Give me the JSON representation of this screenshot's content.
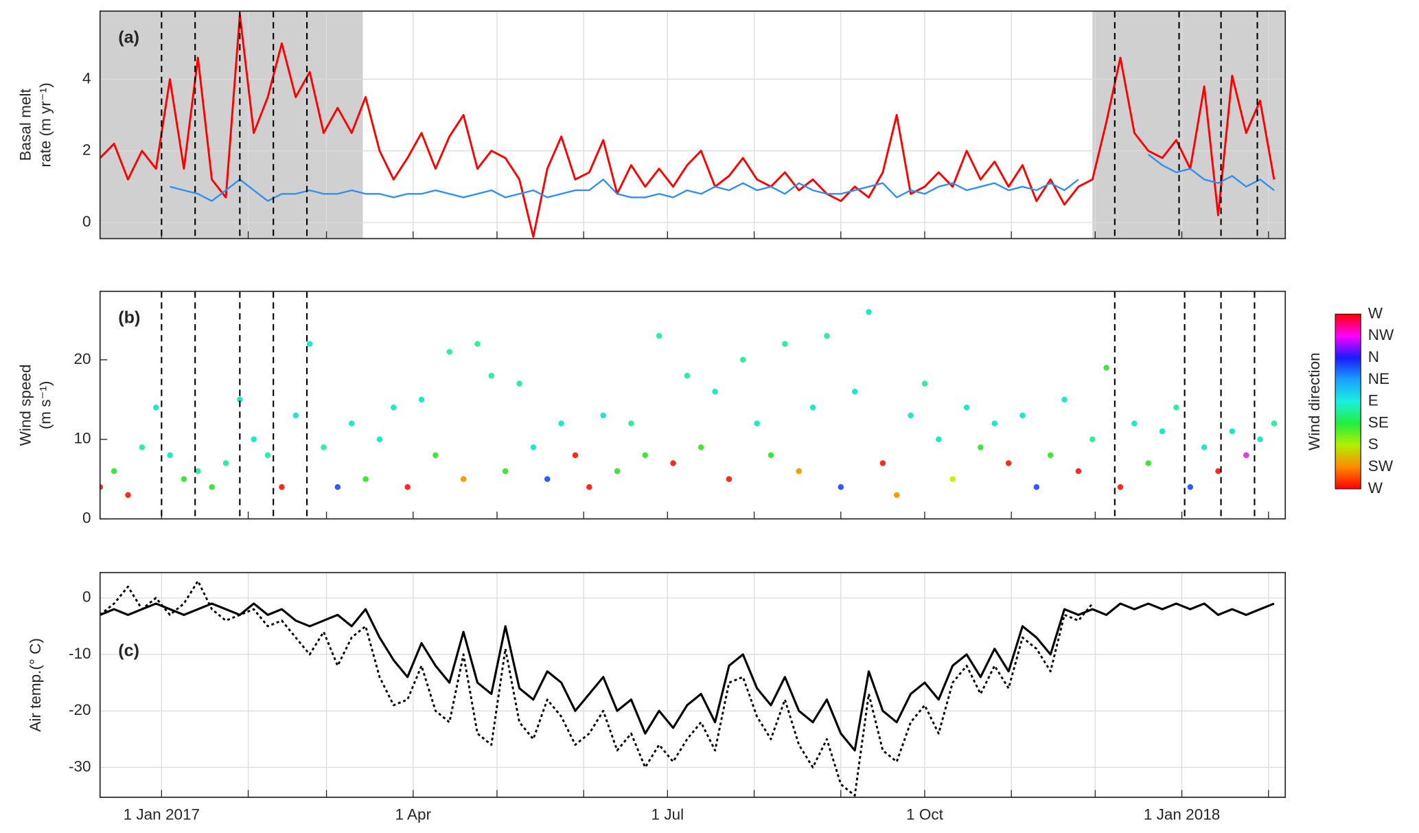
{
  "chart_data": [
    {
      "type": "line",
      "panel_label": "(a)",
      "ylabel": [
        "Basal melt",
        "rate (m yr⁻¹)"
      ],
      "xlim": [
        "2016-12-10",
        "2018-02-07"
      ],
      "ylim": [
        -0.45,
        5.9
      ],
      "yticks": [
        0,
        2,
        4
      ],
      "grid": true,
      "xticks": [
        "2017-01-01",
        "2017-02-01",
        "2017-03-01",
        "2017-04-01",
        "2017-05-01",
        "2017-06-01",
        "2017-07-01",
        "2017-08-01",
        "2017-09-01",
        "2017-10-01",
        "2017-11-01",
        "2017-12-01",
        "2018-01-01",
        "2018-02-01"
      ],
      "shaded": [
        [
          "2016-12-10",
          "2017-03-14"
        ],
        [
          "2017-11-30",
          "2018-02-07"
        ]
      ],
      "shade_color": "#d0d0d0",
      "events": [
        "2017-01-01",
        "2017-01-13",
        "2017-01-29",
        "2017-02-10",
        "2017-02-22",
        "2017-12-08",
        "2017-12-31",
        "2018-01-15",
        "2018-01-28"
      ],
      "x": [
        "2016-12-10",
        "2016-12-15",
        "2016-12-20",
        "2016-12-25",
        "2016-12-30",
        "2017-01-04",
        "2017-01-09",
        "2017-01-14",
        "2017-01-19",
        "2017-01-24",
        "2017-01-29",
        "2017-02-03",
        "2017-02-08",
        "2017-02-13",
        "2017-02-18",
        "2017-02-23",
        "2017-02-28",
        "2017-03-05",
        "2017-03-10",
        "2017-03-15",
        "2017-03-20",
        "2017-03-25",
        "2017-03-30",
        "2017-04-04",
        "2017-04-09",
        "2017-04-14",
        "2017-04-19",
        "2017-04-24",
        "2017-04-29",
        "2017-05-04",
        "2017-05-09",
        "2017-05-14",
        "2017-05-19",
        "2017-05-24",
        "2017-05-29",
        "2017-06-03",
        "2017-06-08",
        "2017-06-13",
        "2017-06-18",
        "2017-06-23",
        "2017-06-28",
        "2017-07-03",
        "2017-07-08",
        "2017-07-13",
        "2017-07-18",
        "2017-07-23",
        "2017-07-28",
        "2017-08-02",
        "2017-08-07",
        "2017-08-12",
        "2017-08-17",
        "2017-08-22",
        "2017-08-27",
        "2017-09-01",
        "2017-09-06",
        "2017-09-11",
        "2017-09-16",
        "2017-09-21",
        "2017-09-26",
        "2017-10-01",
        "2017-10-06",
        "2017-10-11",
        "2017-10-16",
        "2017-10-21",
        "2017-10-26",
        "2017-10-31",
        "2017-11-05",
        "2017-11-10",
        "2017-11-15",
        "2017-11-20",
        "2017-11-25",
        "2017-11-30",
        "2017-12-05",
        "2017-12-10",
        "2017-12-15",
        "2017-12-20",
        "2017-12-25",
        "2017-12-30",
        "2018-01-04",
        "2018-01-09",
        "2018-01-14",
        "2018-01-19",
        "2018-01-24",
        "2018-01-29",
        "2018-02-03"
      ],
      "series": [
        {
          "color": "#ff0000",
          "width": 2.2,
          "values": [
            1.8,
            2.2,
            1.2,
            2.0,
            1.5,
            4.0,
            1.5,
            4.6,
            1.2,
            0.7,
            5.8,
            2.5,
            3.5,
            5.0,
            3.5,
            4.2,
            2.5,
            3.2,
            2.5,
            3.5,
            2.0,
            1.2,
            1.8,
            2.5,
            1.5,
            2.4,
            3.0,
            1.5,
            2.0,
            1.8,
            1.2,
            -0.4,
            1.5,
            2.4,
            1.2,
            1.4,
            2.3,
            0.8,
            1.6,
            1.0,
            1.5,
            1.0,
            1.6,
            2.0,
            1.0,
            1.3,
            1.8,
            1.2,
            1.0,
            1.4,
            0.9,
            1.2,
            0.8,
            0.6,
            1.0,
            0.7,
            1.4,
            3.0,
            0.8,
            1.0,
            1.4,
            1.0,
            2.0,
            1.2,
            1.7,
            1.0,
            1.6,
            0.6,
            1.2,
            0.5,
            1.0,
            1.2,
            2.8,
            4.6,
            2.5,
            2.0,
            1.8,
            2.3,
            1.5,
            3.8,
            0.2,
            4.1,
            2.5,
            3.4,
            1.2
          ]
        },
        {
          "color": "#2e8fef",
          "width": 1.8,
          "values": [
            null,
            null,
            null,
            null,
            null,
            1.0,
            0.9,
            0.8,
            0.6,
            0.9,
            1.2,
            0.9,
            0.6,
            0.8,
            0.8,
            0.9,
            0.8,
            0.8,
            0.9,
            0.8,
            0.8,
            0.7,
            0.8,
            0.8,
            0.9,
            0.8,
            0.7,
            0.8,
            0.9,
            0.7,
            0.8,
            0.9,
            0.7,
            0.8,
            0.9,
            0.9,
            1.2,
            0.8,
            0.7,
            0.7,
            0.8,
            0.7,
            0.9,
            0.8,
            1.0,
            0.9,
            1.1,
            0.9,
            1.0,
            0.8,
            1.1,
            0.9,
            0.8,
            0.8,
            0.9,
            1.0,
            1.1,
            0.7,
            0.9,
            0.8,
            1.0,
            1.1,
            0.9,
            1.0,
            1.1,
            0.9,
            1.0,
            0.9,
            1.1,
            0.9,
            1.2,
            null,
            null,
            null,
            null,
            1.9,
            1.6,
            1.4,
            1.5,
            1.2,
            1.1,
            1.3,
            1.0,
            1.2,
            0.9
          ]
        }
      ]
    },
    {
      "type": "scatter",
      "panel_label": "(b)",
      "ylabel": [
        "Wind speed",
        "(m s⁻¹)"
      ],
      "xlim": [
        "2016-12-10",
        "2018-02-07"
      ],
      "ylim": [
        0,
        28.6
      ],
      "yticks": [
        0,
        10,
        20
      ],
      "grid": false,
      "xticks": [
        "2017-01-01",
        "2017-02-01",
        "2017-03-01",
        "2017-04-01",
        "2017-05-01",
        "2017-06-01",
        "2017-07-01",
        "2017-08-01",
        "2017-09-01",
        "2017-10-01",
        "2017-11-01",
        "2017-12-01",
        "2018-01-01",
        "2018-02-01"
      ],
      "events": [
        "2017-01-01",
        "2017-01-13",
        "2017-01-29",
        "2017-02-10",
        "2017-02-22",
        "2017-12-08",
        "2018-01-02",
        "2018-01-15",
        "2018-01-27"
      ],
      "colorbar": {
        "label": "Wind direction",
        "ticks": [
          "W",
          "NW",
          "N",
          "NE",
          "E",
          "SE",
          "S",
          "SW",
          "W"
        ],
        "colors": [
          "#ff0000",
          "#ff00ff",
          "#1a1aff",
          "#1aa0ff",
          "#1af0e0",
          "#20ee40",
          "#b0f000",
          "#ff8a00",
          "#ff0000"
        ]
      },
      "x": [
        "2016-12-10",
        "2016-12-15",
        "2016-12-20",
        "2016-12-25",
        "2016-12-30",
        "2017-01-04",
        "2017-01-09",
        "2017-01-14",
        "2017-01-19",
        "2017-01-24",
        "2017-01-29",
        "2017-02-03",
        "2017-02-08",
        "2017-02-13",
        "2017-02-18",
        "2017-02-23",
        "2017-02-28",
        "2017-03-05",
        "2017-03-10",
        "2017-03-15",
        "2017-03-20",
        "2017-03-25",
        "2017-03-30",
        "2017-04-04",
        "2017-04-09",
        "2017-04-14",
        "2017-04-19",
        "2017-04-24",
        "2017-04-29",
        "2017-05-04",
        "2017-05-09",
        "2017-05-14",
        "2017-05-19",
        "2017-05-24",
        "2017-05-29",
        "2017-06-03",
        "2017-06-08",
        "2017-06-13",
        "2017-06-18",
        "2017-06-23",
        "2017-06-28",
        "2017-07-03",
        "2017-07-08",
        "2017-07-13",
        "2017-07-18",
        "2017-07-23",
        "2017-07-28",
        "2017-08-02",
        "2017-08-07",
        "2017-08-12",
        "2017-08-17",
        "2017-08-22",
        "2017-08-27",
        "2017-09-01",
        "2017-09-06",
        "2017-09-11",
        "2017-09-16",
        "2017-09-21",
        "2017-09-26",
        "2017-10-01",
        "2017-10-06",
        "2017-10-11",
        "2017-10-16",
        "2017-10-21",
        "2017-10-26",
        "2017-10-31",
        "2017-11-05",
        "2017-11-10",
        "2017-11-15",
        "2017-11-20",
        "2017-11-25",
        "2017-11-30",
        "2017-12-05",
        "2017-12-10",
        "2017-12-15",
        "2017-12-20",
        "2017-12-25",
        "2017-12-30",
        "2018-01-04",
        "2018-01-09",
        "2018-01-14",
        "2018-01-19",
        "2018-01-24",
        "2018-01-29",
        "2018-02-03"
      ],
      "values": [
        4,
        6,
        3,
        9,
        14,
        8,
        5,
        6,
        4,
        7,
        15,
        10,
        8,
        4,
        13,
        22,
        9,
        4,
        12,
        5,
        10,
        14,
        4,
        15,
        8,
        21,
        5,
        22,
        18,
        6,
        17,
        9,
        5,
        12,
        8,
        4,
        13,
        6,
        12,
        8,
        23,
        7,
        18,
        9,
        16,
        5,
        20,
        12,
        8,
        22,
        6,
        14,
        23,
        4,
        16,
        26,
        7,
        3,
        13,
        17,
        10,
        5,
        14,
        9,
        12,
        7,
        13,
        4,
        8,
        15,
        6,
        10,
        19,
        4,
        12,
        7,
        11,
        14,
        4,
        9,
        6,
        11,
        8,
        10,
        12
      ],
      "point_colors": [
        "#ff2a1a",
        "#3ee63a",
        "#ff2a1a",
        "#2ef09a",
        "#1ee8c8",
        "#1ee8c8",
        "#3ee63a",
        "#2ef09a",
        "#3ee63a",
        "#2ef09a",
        "#1ee8c8",
        "#1ee8c8",
        "#2ef09a",
        "#ff2a1a",
        "#1ee8c8",
        "#1ee8c8",
        "#2ef09a",
        "#2a5cff",
        "#1ee8c8",
        "#3ee63a",
        "#1ee8c8",
        "#1ee8c8",
        "#ff2a1a",
        "#1ee8c8",
        "#3ee63a",
        "#2ef09a",
        "#ff9a00",
        "#2ef09a",
        "#2ef09a",
        "#3ee63a",
        "#2ef09a",
        "#1ee8c8",
        "#2a5cff",
        "#1ee8c8",
        "#ff2a1a",
        "#ff2a1a",
        "#1ee8c8",
        "#3ee63a",
        "#2ef09a",
        "#3ee63a",
        "#2ef09a",
        "#ff2a1a",
        "#2ef09a",
        "#3ee63a",
        "#1ee8c8",
        "#ff2a1a",
        "#2ef09a",
        "#1ee8c8",
        "#3ee63a",
        "#2ef09a",
        "#ff9a00",
        "#1ee8c8",
        "#2ef09a",
        "#2a5cff",
        "#1ee8c8",
        "#1ee8c8",
        "#ff2a1a",
        "#ff9a00",
        "#1ee8c8",
        "#2ef09a",
        "#1ee8c8",
        "#c8f000",
        "#1ee8c8",
        "#3ee63a",
        "#1ee8c8",
        "#ff2a1a",
        "#1ee8c8",
        "#2a5cff",
        "#3ee63a",
        "#1ee8c8",
        "#ff2a1a",
        "#2ef09a",
        "#3ee63a",
        "#ff2a1a",
        "#1ee8c8",
        "#3ee63a",
        "#1ee8c8",
        "#2ef09a",
        "#2a5cff",
        "#1ee8c8",
        "#ff2a1a",
        "#1ee8c8",
        "#e03ae8",
        "#1ee8c8",
        "#2ef09a"
      ]
    },
    {
      "type": "line",
      "panel_label": "(c)",
      "ylabel": [
        "Air temp.(° C)"
      ],
      "xlim": [
        "2016-12-10",
        "2018-02-07"
      ],
      "ylim": [
        -35.3,
        4.5
      ],
      "yticks": [
        -30,
        -20,
        -10,
        0
      ],
      "grid": true,
      "xticks": [
        {
          "value": "2017-01-01",
          "label": "1 Jan 2017"
        },
        "2017-02-01",
        "2017-03-01",
        {
          "value": "2017-04-01",
          "label": "1 Apr"
        },
        "2017-05-01",
        "2017-06-01",
        {
          "value": "2017-07-01",
          "label": "1 Jul"
        },
        "2017-08-01",
        "2017-09-01",
        {
          "value": "2017-10-01",
          "label": "1 Oct"
        },
        "2017-11-01",
        "2017-12-01",
        {
          "value": "2018-01-01",
          "label": "1 Jan 2018"
        },
        "2018-02-01"
      ],
      "x": [
        "2016-12-10",
        "2016-12-15",
        "2016-12-20",
        "2016-12-25",
        "2016-12-30",
        "2017-01-04",
        "2017-01-09",
        "2017-01-14",
        "2017-01-19",
        "2017-01-24",
        "2017-01-29",
        "2017-02-03",
        "2017-02-08",
        "2017-02-13",
        "2017-02-18",
        "2017-02-23",
        "2017-02-28",
        "2017-03-05",
        "2017-03-10",
        "2017-03-15",
        "2017-03-20",
        "2017-03-25",
        "2017-03-30",
        "2017-04-04",
        "2017-04-09",
        "2017-04-14",
        "2017-04-19",
        "2017-04-24",
        "2017-04-29",
        "2017-05-04",
        "2017-05-09",
        "2017-05-14",
        "2017-05-19",
        "2017-05-24",
        "2017-05-29",
        "2017-06-03",
        "2017-06-08",
        "2017-06-13",
        "2017-06-18",
        "2017-06-23",
        "2017-06-28",
        "2017-07-03",
        "2017-07-08",
        "2017-07-13",
        "2017-07-18",
        "2017-07-23",
        "2017-07-28",
        "2017-08-02",
        "2017-08-07",
        "2017-08-12",
        "2017-08-17",
        "2017-08-22",
        "2017-08-27",
        "2017-09-01",
        "2017-09-06",
        "2017-09-11",
        "2017-09-16",
        "2017-09-21",
        "2017-09-26",
        "2017-10-01",
        "2017-10-06",
        "2017-10-11",
        "2017-10-16",
        "2017-10-21",
        "2017-10-26",
        "2017-10-31",
        "2017-11-05",
        "2017-11-10",
        "2017-11-15",
        "2017-11-20",
        "2017-11-25",
        "2017-11-30",
        "2017-12-05",
        "2017-12-10",
        "2017-12-15",
        "2017-12-20",
        "2017-12-25",
        "2017-12-30",
        "2018-01-04",
        "2018-01-09",
        "2018-01-14",
        "2018-01-19",
        "2018-01-24",
        "2018-01-29",
        "2018-02-03"
      ],
      "series": [
        {
          "color": "#000000",
          "width": 2.4,
          "values": [
            -3,
            -2,
            -3,
            -2,
            -1,
            -2,
            -3,
            -2,
            -1,
            -2,
            -3,
            -1,
            -3,
            -2,
            -4,
            -5,
            -4,
            -3,
            -5,
            -2,
            -7,
            -11,
            -14,
            -8,
            -12,
            -15,
            -6,
            -15,
            -17,
            -5,
            -16,
            -18,
            -13,
            -15,
            -20,
            -17,
            -14,
            -20,
            -18,
            -24,
            -20,
            -23,
            -19,
            -17,
            -22,
            -12,
            -10,
            -16,
            -19,
            -14,
            -20,
            -22,
            -18,
            -24,
            -27,
            -13,
            -20,
            -22,
            -17,
            -15,
            -18,
            -12,
            -10,
            -14,
            -9,
            -13,
            -5,
            -7,
            -10,
            -2,
            -3,
            -2,
            -3,
            -1,
            -2,
            -1,
            -2,
            -1,
            -2,
            -1,
            -3,
            -2,
            -3,
            -2,
            -1
          ]
        },
        {
          "color": "#000000",
          "width": 2.2,
          "dash": "dotted",
          "values": [
            -3,
            -1,
            2,
            -2,
            0,
            -3,
            -1,
            3,
            -2,
            -4,
            -3,
            -2,
            -5,
            -4,
            -7,
            -10,
            -6,
            -12,
            -7,
            -5,
            -14,
            -19,
            -18,
            -12,
            -20,
            -22,
            -10,
            -24,
            -26,
            -9,
            -22,
            -25,
            -18,
            -21,
            -26,
            -24,
            -20,
            -27,
            -24,
            -30,
            -26,
            -29,
            -25,
            -22,
            -27,
            -15,
            -14,
            -21,
            -25,
            -18,
            -26,
            -30,
            -25,
            -33,
            -35,
            -17,
            -27,
            -29,
            -22,
            -19,
            -24,
            -15,
            -12,
            -17,
            -12,
            -16,
            -7,
            -9,
            -13,
            -3,
            -4,
            -1,
            null,
            null,
            null,
            null,
            null,
            null,
            null,
            null,
            null,
            null,
            null,
            null,
            null
          ]
        }
      ]
    }
  ]
}
